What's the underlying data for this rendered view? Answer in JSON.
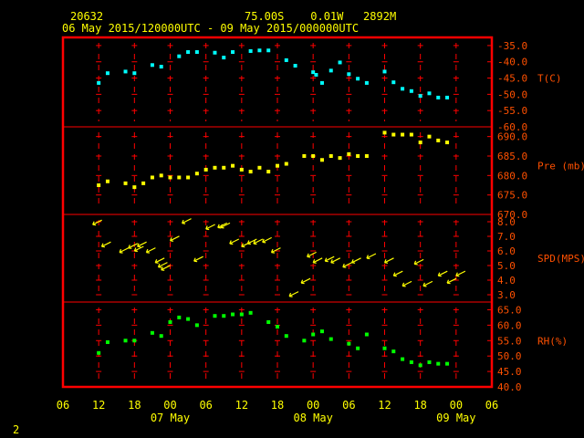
{
  "header": {
    "station": "20632",
    "location": "75.00S    0.01W   2892M",
    "period": "06 May 2015/120000UTC - 09 May 2015/000000UTC"
  },
  "footer": {
    "page_number": "2"
  },
  "colors": {
    "frame": "#ff0000",
    "grid": "#ff0000",
    "header_text": "#ffff00",
    "axis_label": "#ff5000",
    "tick_label": "#ff5000",
    "time_label": "#ffff00",
    "temperature": "#00ffff",
    "pressure": "#ffff00",
    "wind_barb": "#ffff00",
    "rh": "#00ff00",
    "background": "#000000"
  },
  "chart_data": {
    "type": "scatter",
    "x_unit": "hours since 06 May 2015 12 UTC",
    "x_ticks": [
      "06",
      "12",
      "18",
      "00",
      "06",
      "12",
      "18",
      "00",
      "06",
      "12",
      "18",
      "00",
      "06"
    ],
    "x_tick_hours": [
      -6,
      0,
      6,
      12,
      18,
      24,
      30,
      36,
      42,
      48,
      54,
      60,
      66
    ],
    "date_labels": [
      {
        "text": "07 May",
        "hour": 12
      },
      {
        "text": "08 May",
        "hour": 36
      },
      {
        "text": "09 May",
        "hour": 60
      }
    ],
    "grid": true,
    "panels": [
      {
        "name": "temperature",
        "label": "T(C)",
        "ylim": [
          -60,
          -32.5
        ],
        "ticks": [
          "-35.0",
          "-40.0",
          "-45.0",
          "-50.0",
          "-55.0",
          "-60.0"
        ],
        "tick_values": [
          -35,
          -40,
          -45,
          -50,
          -55,
          -60
        ],
        "x": [
          0,
          1.5,
          4.5,
          6,
          9,
          10.5,
          13.5,
          15,
          16.5,
          19.5,
          21,
          22.5,
          25.5,
          27,
          28.5,
          31.5,
          33,
          36,
          36.5,
          37.5,
          39,
          40.5,
          42,
          43.5,
          45,
          48,
          49.5,
          51,
          52.5,
          54,
          55.5,
          57,
          58.5
        ],
        "y": [
          -46.5,
          -43.5,
          -43,
          -43.5,
          -41,
          -41.5,
          -38.3,
          -37,
          -37,
          -37.2,
          -38.7,
          -37,
          -36.7,
          -36.5,
          -36.5,
          -39.5,
          -41.2,
          -43.2,
          -44,
          -46.5,
          -42.7,
          -40.2,
          -43.8,
          -45.2,
          -46.5,
          -43,
          -46.3,
          -48.3,
          -49,
          -50.5,
          -49.7,
          -51,
          -51
        ],
        "color": "#00ffff"
      },
      {
        "name": "pressure",
        "label": "Pre (mb)",
        "ylim": [
          670,
          692.5
        ],
        "ticks": [
          "690.0",
          "685.0",
          "680.0",
          "675.0",
          "670.0"
        ],
        "tick_values": [
          690,
          685,
          680,
          675,
          670
        ],
        "x": [
          0,
          1.5,
          4.5,
          6,
          7.5,
          9,
          10.5,
          12,
          13.5,
          15,
          16.5,
          18,
          19.5,
          21,
          22.5,
          24,
          25.5,
          27,
          28.5,
          30,
          31.5,
          34.5,
          36,
          37.5,
          39,
          40.5,
          42,
          43.5,
          45,
          48,
          49.5,
          51,
          52.5,
          54,
          55.5,
          57,
          58.5
        ],
        "y": [
          677.5,
          678.5,
          678,
          677,
          678,
          679.5,
          680,
          679.5,
          679.5,
          679.5,
          680.5,
          681.5,
          682,
          682,
          682.5,
          681.5,
          681,
          682,
          681,
          682.5,
          683,
          685,
          685,
          684,
          685,
          684.5,
          685.5,
          685,
          685,
          691,
          690.5,
          690.5,
          690.5,
          688.5,
          690,
          689,
          688.5
        ],
        "color": "#ffff00"
      },
      {
        "name": "wind",
        "label": "SPD(MPS)",
        "ylim": [
          2.5,
          8.5
        ],
        "ticks": [
          "8.0",
          "7.0",
          "6.0",
          "5.0",
          "4.0",
          "3.0"
        ],
        "tick_values": [
          8,
          7,
          6,
          5,
          4,
          3
        ],
        "x": [
          -1,
          0.5,
          3.5,
          5,
          6,
          6.5,
          8,
          9.5,
          10,
          10.5,
          12,
          14,
          16,
          18,
          20,
          20.5,
          22,
          24,
          25,
          26,
          27.5,
          29,
          32,
          34,
          35,
          36,
          38,
          39,
          41,
          42.5,
          45,
          48,
          49.5,
          51,
          53,
          54.5,
          57,
          58.5,
          60
        ],
        "y": [
          7.8,
          6.3,
          5.9,
          6.2,
          6,
          6.3,
          5.9,
          5.2,
          4.9,
          4.7,
          6.7,
          7.9,
          5.3,
          7.5,
          7.6,
          7.6,
          6.5,
          6.3,
          6.5,
          6.5,
          6.6,
          5.9,
          2.9,
          3.8,
          5.6,
          5.2,
          5.3,
          5.2,
          4.9,
          5.2,
          5.5,
          5.2,
          4.3,
          3.6,
          5.1,
          3.6,
          4.3,
          3.8,
          4.3
        ],
        "color": "#ffff00"
      },
      {
        "name": "rh",
        "label": "RH(%)",
        "ylim": [
          40,
          67.5
        ],
        "ticks": [
          "65.0",
          "60.0",
          "55.0",
          "50.0",
          "45.0",
          "40.0"
        ],
        "tick_values": [
          65,
          60,
          55,
          50,
          45,
          40
        ],
        "x": [
          0,
          1.5,
          4.5,
          6,
          9,
          10.5,
          12,
          13.5,
          15,
          16.5,
          19.5,
          21,
          22.5,
          24,
          25.5,
          28.5,
          30,
          31.5,
          34.5,
          36,
          37.5,
          39,
          42,
          43.5,
          45,
          48,
          49.5,
          51,
          52.5,
          54,
          55.5,
          57,
          58.5
        ],
        "y": [
          51,
          54.5,
          55,
          55,
          57.5,
          56.5,
          61,
          62.5,
          62,
          60,
          63,
          63,
          63.5,
          63.5,
          64,
          61,
          59.5,
          56.5,
          55,
          57,
          58,
          55.5,
          54,
          52.5,
          57,
          52.5,
          51.5,
          49,
          48,
          47,
          48,
          47.5,
          47.5
        ],
        "color": "#00ff00"
      }
    ]
  }
}
